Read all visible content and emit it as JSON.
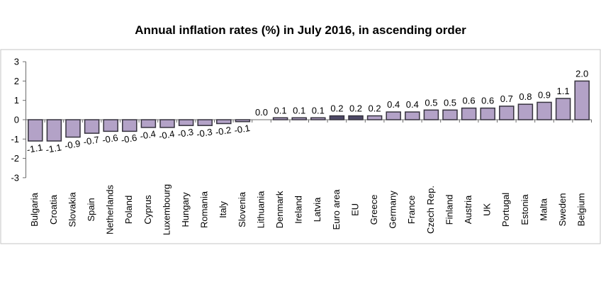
{
  "title": "Annual inflation rates (%) in July 2016, in ascending order",
  "chart_data": {
    "type": "bar",
    "title": "Annual inflation rates (%) in July 2016, in ascending order",
    "categories": [
      "Bulgaria",
      "Croatia",
      "Slovakia",
      "Spain",
      "Netherlands",
      "Poland",
      "Cyprus",
      "Luxembourg",
      "Hungary",
      "Romania",
      "Italy",
      "Slovenia",
      "Lithuania",
      "Denmark",
      "Ireland",
      "Latvia",
      "Euro area",
      "EU",
      "Greece",
      "Germany",
      "France",
      "Czech Rep.",
      "Finland",
      "Austria",
      "UK",
      "Portugal",
      "Estonia",
      "Malta",
      "Sweden",
      "Belgium"
    ],
    "values": [
      -1.1,
      -1.1,
      -0.9,
      -0.7,
      -0.6,
      -0.6,
      -0.4,
      -0.4,
      -0.3,
      -0.3,
      -0.2,
      -0.1,
      0.0,
      0.1,
      0.1,
      0.1,
      0.2,
      0.2,
      0.2,
      0.4,
      0.4,
      0.5,
      0.5,
      0.6,
      0.6,
      0.7,
      0.8,
      0.9,
      1.1,
      2.0
    ],
    "value_labels": [
      "-1.1",
      "-1.1",
      "-0.9",
      "-0.7",
      "-0.6",
      "-0.6",
      "-0.4",
      "-0.4",
      "-0.3",
      "-0.3",
      "-0.2",
      "-0.1",
      "0.0",
      "0.1",
      "0.1",
      "0.1",
      "0.2",
      "0.2",
      "0.2",
      "0.4",
      "0.4",
      "0.5",
      "0.5",
      "0.6",
      "0.6",
      "0.7",
      "0.8",
      "0.9",
      "1.1",
      "2.0"
    ],
    "highlighted_categories": [
      "Euro area",
      "EU"
    ],
    "xlabel": "",
    "ylabel": "",
    "ylim": [
      -3,
      3
    ],
    "yticks": [
      "3",
      "2",
      "1",
      "0",
      "-1",
      "-2",
      "-3"
    ],
    "ytick_values": [
      3,
      2,
      1,
      0,
      -1,
      -2,
      -3
    ],
    "grid": false,
    "legend": null,
    "colors": {
      "bar_fill": "#b3a2c7",
      "bar_fill_highlight": "#4e4968",
      "bar_border": "#36333e",
      "axis": "#6b6b6b",
      "panel_border": "#c6c6c6",
      "text": "#000000",
      "background": "#ffffff"
    }
  }
}
